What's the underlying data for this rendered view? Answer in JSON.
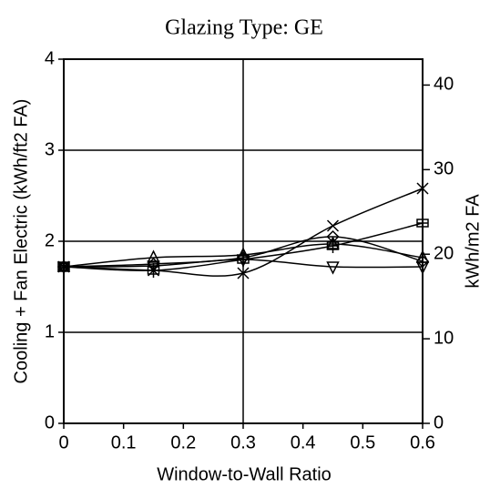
{
  "chart_data": {
    "type": "line",
    "title": "Glazing Type:  GE",
    "x_label": "Window-to-Wall Ratio",
    "y_label": "Cooling + Fan Electric (kWh/ft2 FA)",
    "y2_label": "kWh/m2 FA",
    "x": [
      0,
      0.15,
      0.3,
      0.45,
      0.6
    ],
    "xlim": [
      0,
      0.6
    ],
    "xticks": [
      0,
      0.1,
      0.2,
      0.3,
      0.4,
      0.5,
      0.6
    ],
    "ylim": [
      0,
      4
    ],
    "yticks": [
      0,
      1,
      2,
      3,
      4
    ],
    "y2lim": [
      0,
      43.06
    ],
    "y2ticks": [
      0,
      10,
      20,
      30,
      40
    ],
    "grid": true,
    "x_grid_lines": [
      0.3
    ],
    "series": [
      {
        "color": "#000000",
        "marker": "x",
        "values": [
          1.72,
          1.68,
          1.65,
          2.17,
          2.58
        ]
      },
      {
        "color": "#000000",
        "marker": "plus-box",
        "values": [
          1.72,
          1.68,
          1.8,
          1.95,
          2.2
        ]
      },
      {
        "color": "#000000",
        "marker": "diamond",
        "values": [
          1.72,
          1.75,
          1.82,
          2.05,
          1.78
        ]
      },
      {
        "color": "#000000",
        "marker": "triangle-up",
        "values": [
          1.72,
          1.82,
          1.85,
          1.97,
          1.82
        ]
      },
      {
        "color": "#000000",
        "marker": "triangle-down",
        "values": [
          1.72,
          1.73,
          1.8,
          1.72,
          1.72
        ]
      }
    ]
  }
}
